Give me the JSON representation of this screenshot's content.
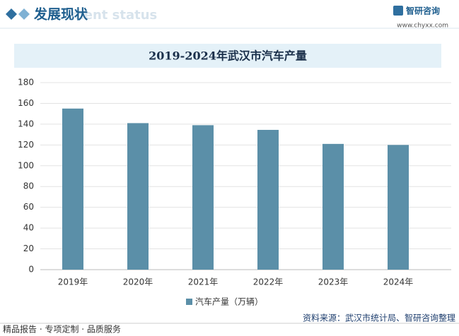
{
  "header": {
    "title": "发展现状",
    "subtitle": "ment status",
    "brand": "智研咨询",
    "website": "www.chyxx.com"
  },
  "chart_data": {
    "type": "bar",
    "title": "2019-2024年武汉市汽车产量",
    "categories": [
      "2019年",
      "2020年",
      "2021年",
      "2022年",
      "2023年",
      "2024年"
    ],
    "series": [
      {
        "name": "汽车产量（万辆）",
        "color": "#5b8fa8",
        "values": [
          155,
          141,
          139,
          134.5,
          121,
          120
        ]
      }
    ],
    "ylim": [
      0,
      180
    ],
    "yticks": [
      0,
      20,
      40,
      60,
      80,
      100,
      120,
      140,
      160,
      180
    ],
    "grid": true,
    "legend": "bottom"
  },
  "footer": {
    "source": "资料来源：武汉市统计局、智研咨询整理",
    "slogan": "精品报告 · 专项定制 · 品质服务"
  }
}
